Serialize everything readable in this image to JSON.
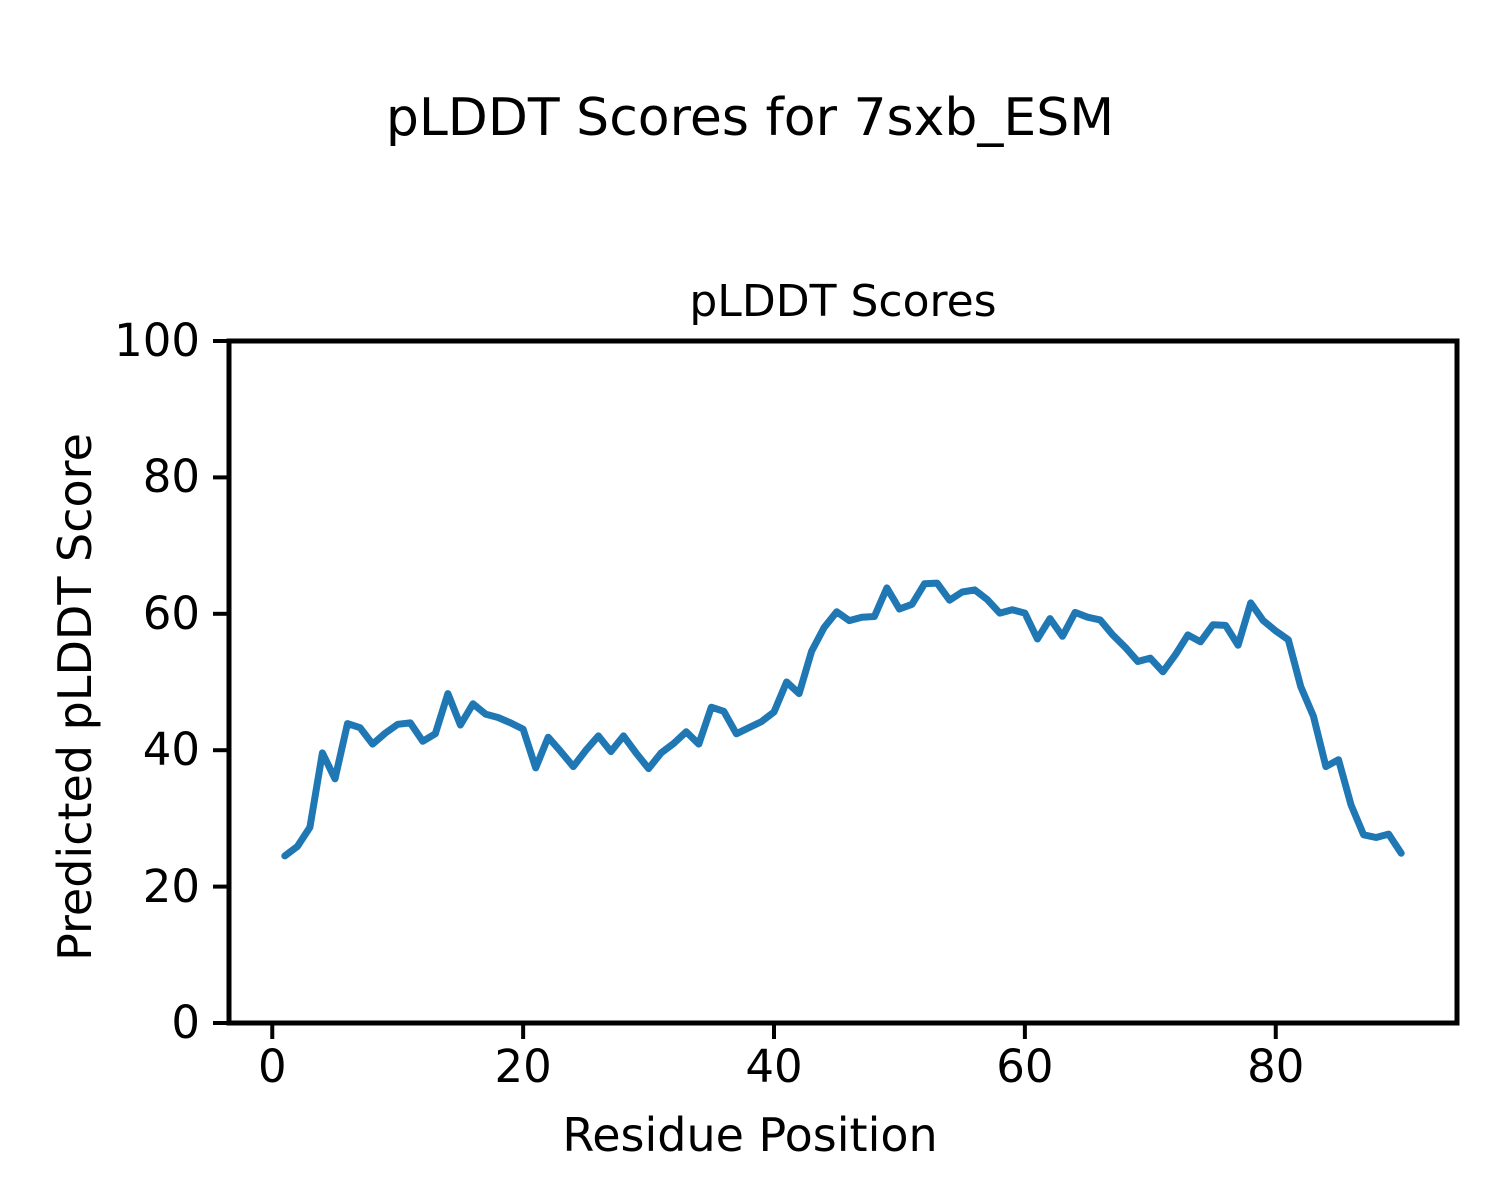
{
  "figure": {
    "suptitle": "pLDDT Scores for 7sxb_ESM",
    "background": "#ffffff",
    "text_color": "#000000"
  },
  "chart_data": {
    "type": "line",
    "title": "pLDDT Scores",
    "xlabel": "Residue Position",
    "ylabel": "Predicted pLDDT Score",
    "x_tick_labels": [
      0,
      20,
      40,
      60,
      80
    ],
    "y_tick_labels": [
      0,
      20,
      40,
      60,
      80,
      100
    ],
    "xlim": [
      -3.45,
      94.45
    ],
    "ylim": [
      0,
      100
    ],
    "grid": false,
    "legend": "none",
    "line_color": "#1f77b4",
    "spine_color": "#000000",
    "series": [
      {
        "name": "pLDDT",
        "x": [
          1,
          2,
          3,
          4,
          5,
          6,
          7,
          8,
          9,
          10,
          11,
          12,
          13,
          14,
          15,
          16,
          17,
          18,
          19,
          20,
          21,
          22,
          23,
          24,
          25,
          26,
          27,
          28,
          29,
          30,
          31,
          32,
          33,
          34,
          35,
          36,
          37,
          38,
          39,
          40,
          41,
          42,
          43,
          44,
          45,
          46,
          47,
          48,
          49,
          50,
          51,
          52,
          53,
          54,
          55,
          56,
          57,
          58,
          59,
          60,
          61,
          62,
          63,
          64,
          65,
          66,
          67,
          68,
          69,
          70,
          71,
          72,
          73,
          74,
          75,
          76,
          77,
          78,
          79,
          80,
          81,
          82,
          83,
          84,
          85,
          86,
          87,
          88,
          89,
          90
        ],
        "values": [
          24.5,
          25.9,
          28.7,
          39.6,
          35.8,
          43.9,
          43.3,
          40.9,
          42.5,
          43.8,
          44.0,
          41.3,
          42.4,
          48.3,
          43.7,
          46.8,
          45.3,
          44.8,
          44.0,
          43.1,
          37.4,
          41.9,
          39.8,
          37.6,
          40.0,
          42.1,
          39.8,
          42.1,
          39.6,
          37.3,
          39.6,
          41.0,
          42.7,
          40.9,
          46.3,
          45.7,
          42.4,
          43.3,
          44.2,
          45.6,
          50.0,
          48.3,
          54.5,
          58.0,
          60.3,
          59.0,
          59.5,
          59.6,
          63.8,
          60.7,
          61.4,
          64.4,
          64.5,
          62.0,
          63.2,
          63.5,
          62.1,
          60.1,
          60.6,
          60.1,
          56.3,
          59.3,
          56.7,
          60.2,
          59.5,
          59.1,
          56.9,
          55.1,
          53.0,
          53.5,
          51.5,
          54.0,
          56.9,
          55.9,
          58.4,
          58.3,
          55.4,
          61.6,
          59.0,
          57.5,
          56.2,
          49.3,
          45.0,
          37.6,
          38.6,
          32.0,
          27.6,
          27.2,
          27.7,
          24.9
        ]
      }
    ]
  }
}
